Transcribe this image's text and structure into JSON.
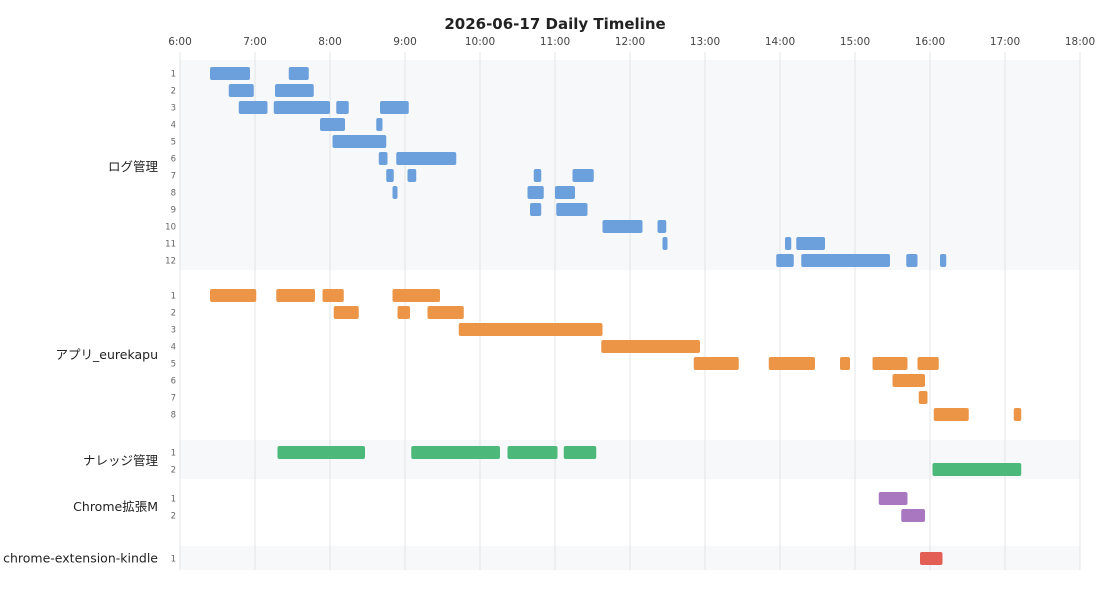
{
  "chart_data": {
    "type": "timeline",
    "title": "2026-06-17 Daily Timeline",
    "x_ticks": [
      "6:00",
      "7:00",
      "8:00",
      "9:00",
      "10:00",
      "11:00",
      "12:00",
      "13:00",
      "14:00",
      "15:00",
      "16:00",
      "17:00",
      "18:00"
    ],
    "x_range": [
      "6:00",
      "18:00"
    ],
    "grid": true,
    "groups": [
      {
        "name": "ログ管理",
        "color": "#6ca0dc",
        "rows": [
          {
            "label": "1",
            "bars": [
              [
                "6:24",
                "6:56"
              ],
              [
                "7:27",
                "7:43"
              ]
            ]
          },
          {
            "label": "2",
            "bars": [
              [
                "6:39",
                "6:59"
              ],
              [
                "7:16",
                "7:47"
              ]
            ]
          },
          {
            "label": "3",
            "bars": [
              [
                "6:47",
                "7:10"
              ],
              [
                "7:15",
                "8:00"
              ],
              [
                "8:05",
                "8:15"
              ],
              [
                "8:40",
                "9:03"
              ]
            ]
          },
          {
            "label": "4",
            "bars": [
              [
                "7:52",
                "8:12"
              ],
              [
                "8:37",
                "8:42"
              ]
            ]
          },
          {
            "label": "5",
            "bars": [
              [
                "8:02",
                "8:45"
              ]
            ]
          },
          {
            "label": "6",
            "bars": [
              [
                "8:39",
                "8:46"
              ],
              [
                "8:53",
                "9:41"
              ]
            ]
          },
          {
            "label": "7",
            "bars": [
              [
                "8:45",
                "8:51"
              ],
              [
                "9:02",
                "9:09"
              ],
              [
                "10:43",
                "10:49"
              ],
              [
                "11:14",
                "11:31"
              ]
            ]
          },
          {
            "label": "8",
            "bars": [
              [
                "8:50",
                "8:54"
              ],
              [
                "10:38",
                "10:51"
              ],
              [
                "11:00",
                "11:16"
              ]
            ]
          },
          {
            "label": "9",
            "bars": [
              [
                "10:40",
                "10:49"
              ],
              [
                "11:01",
                "11:26"
              ]
            ]
          },
          {
            "label": "10",
            "bars": [
              [
                "11:38",
                "12:10"
              ],
              [
                "12:22",
                "12:29"
              ]
            ]
          },
          {
            "label": "11",
            "bars": [
              [
                "12:26",
                "12:30"
              ],
              [
                "14:04",
                "14:09"
              ],
              [
                "14:13",
                "14:36"
              ]
            ]
          },
          {
            "label": "12",
            "bars": [
              [
                "13:57",
                "14:11"
              ],
              [
                "14:17",
                "15:28"
              ],
              [
                "15:41",
                "15:50"
              ],
              [
                "16:08",
                "16:13"
              ]
            ]
          }
        ]
      },
      {
        "name": "アプリ_eurekapu",
        "color": "#ec9547",
        "rows": [
          {
            "label": "1",
            "bars": [
              [
                "6:24",
                "7:01"
              ],
              [
                "7:17",
                "7:48"
              ],
              [
                "7:54",
                "8:11"
              ],
              [
                "8:50",
                "9:28"
              ]
            ]
          },
          {
            "label": "2",
            "bars": [
              [
                "8:03",
                "8:23"
              ],
              [
                "8:54",
                "9:04"
              ],
              [
                "9:18",
                "9:47"
              ]
            ]
          },
          {
            "label": "3",
            "bars": [
              [
                "9:43",
                "11:38"
              ]
            ]
          },
          {
            "label": "4",
            "bars": [
              [
                "11:37",
                "12:56"
              ]
            ]
          },
          {
            "label": "5",
            "bars": [
              [
                "12:51",
                "13:27"
              ],
              [
                "13:51",
                "14:28"
              ],
              [
                "14:48",
                "14:56"
              ],
              [
                "15:14",
                "15:42"
              ],
              [
                "15:50",
                "16:07"
              ]
            ]
          },
          {
            "label": "6",
            "bars": [
              [
                "15:30",
                "15:56"
              ]
            ]
          },
          {
            "label": "7",
            "bars": [
              [
                "15:51",
                "15:58"
              ]
            ]
          },
          {
            "label": "8",
            "bars": [
              [
                "16:03",
                "16:31"
              ],
              [
                "17:07",
                "17:13"
              ]
            ]
          }
        ]
      },
      {
        "name": "ナレッジ管理",
        "color": "#4cb87a",
        "rows": [
          {
            "label": "1",
            "bars": [
              [
                "7:18",
                "8:28"
              ],
              [
                "9:05",
                "10:16"
              ],
              [
                "10:22",
                "11:02"
              ],
              [
                "11:07",
                "11:33"
              ]
            ]
          },
          {
            "label": "2",
            "bars": [
              [
                "16:02",
                "17:13"
              ]
            ]
          }
        ]
      },
      {
        "name": "Chrome拡張M",
        "color": "#a976c0",
        "rows": [
          {
            "label": "1",
            "bars": [
              [
                "15:19",
                "15:42"
              ]
            ]
          },
          {
            "label": "2",
            "bars": [
              [
                "15:37",
                "15:56"
              ]
            ]
          }
        ]
      },
      {
        "name": "chrome-extension-kindle",
        "color": "#e35f55",
        "rows": [
          {
            "label": "1",
            "bars": [
              [
                "15:52",
                "16:10"
              ]
            ]
          }
        ]
      }
    ]
  }
}
